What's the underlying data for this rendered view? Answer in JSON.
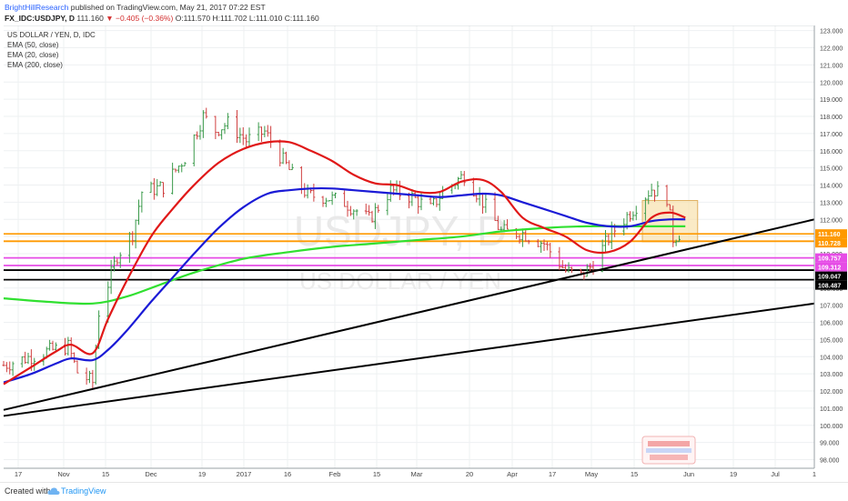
{
  "header": {
    "author": "BrightHillResearch",
    "published_text": "published on TradingView.com, May 21, 2017 07:22 EST",
    "symbol": "FX_IDC:USDJPY, D",
    "last": "111.160",
    "change": "▼ −0.405 (−0.36%)",
    "ohlc": "O:111.570 H:111.702 L:111.010 C:111.160"
  },
  "legend": {
    "title": "US DOLLAR / YEN, D, IDC",
    "items": [
      "EMA (50, close)",
      "EMA (20, close)",
      "EMA (200, close)"
    ]
  },
  "watermark": {
    "symbol": "USDJPY, D",
    "name": "US DOLLAR / YEN"
  },
  "footer": {
    "created_with": "Created with",
    "brand": "TradingView"
  },
  "colors": {
    "ema20": "#e01818",
    "ema50": "#1a1ad6",
    "ema200": "#30e030",
    "orange": "#ff9900",
    "magenta": "#e64ce6",
    "trend": "#000000",
    "up_bar": "#3a9a4a",
    "down_bar": "#d04040",
    "box_fill": "#f8dfa8"
  },
  "chart_data": {
    "type": "line",
    "x_ticks": [
      "17",
      "Nov",
      "15",
      "Dec",
      "19",
      "2017",
      "16",
      "Feb",
      "15",
      "Mar",
      "20",
      "Apr",
      "17",
      "May",
      "15",
      "Jun",
      "19",
      "Jul",
      "1"
    ],
    "y_ticks": [
      98,
      99,
      100,
      101,
      102,
      103,
      104,
      105,
      106,
      107,
      108,
      109,
      110,
      111,
      112,
      113,
      114,
      115,
      116,
      117,
      118,
      119,
      120,
      121,
      122,
      123
    ],
    "ylim": [
      97.5,
      123.3
    ],
    "price_labels": [
      {
        "label": "111.160",
        "value": 111.16,
        "color": "#ff9900",
        "text_color": "#ffffff"
      },
      {
        "label": "110.728",
        "value": 110.728,
        "color": "#ff9900",
        "text_color": "#ffffff"
      },
      {
        "label": "109.757",
        "value": 109.757,
        "color": "#e64ce6",
        "text_color": "#ffffff"
      },
      {
        "label": "109.312",
        "value": 109.312,
        "color": "#e64ce6",
        "text_color": "#ffffff"
      },
      {
        "label": "109.047",
        "value": 109.047,
        "color": "#000000",
        "text_color": "#ffffff"
      },
      {
        "label": "108.487",
        "value": 108.487,
        "color": "#000000",
        "text_color": "#ffffff"
      }
    ],
    "horizontal_levels": [
      {
        "value": 110.728,
        "color": "#ff9900"
      },
      {
        "value": 109.757,
        "color": "#e64ce6"
      },
      {
        "value": 109.312,
        "color": "#e64ce6"
      },
      {
        "value": 109.047,
        "color": "#000000"
      },
      {
        "value": 108.487,
        "color": "#000000"
      }
    ],
    "trendlines": [
      {
        "from": [
          "2016-10-11",
          100.9
        ],
        "to": [
          "2017-07-02",
          112.0
        ]
      },
      {
        "from": [
          "2016-10-11",
          100.55
        ],
        "to": [
          "2017-07-02",
          107.1
        ]
      }
    ],
    "highlight_box": {
      "from": "2017-05-07",
      "to": "2017-05-25",
      "low": 110.7,
      "high": 113.1
    },
    "ema20": [
      [
        "2016-10-11",
        102.4
      ],
      [
        "2016-10-20",
        103.4
      ],
      [
        "2016-10-28",
        104.3
      ],
      [
        "2016-11-02",
        104.7
      ],
      [
        "2016-11-09",
        104.2
      ],
      [
        "2016-11-14",
        106.2
      ],
      [
        "2016-11-20",
        108.4
      ],
      [
        "2016-11-28",
        111.0
      ],
      [
        "2016-12-05",
        112.6
      ],
      [
        "2016-12-12",
        114.0
      ],
      [
        "2016-12-20",
        115.3
      ],
      [
        "2016-12-28",
        116.1
      ],
      [
        "2017-01-05",
        116.5
      ],
      [
        "2017-01-12",
        116.5
      ],
      [
        "2017-01-19",
        116.0
      ],
      [
        "2017-01-26",
        115.4
      ],
      [
        "2017-02-02",
        114.6
      ],
      [
        "2017-02-09",
        114.1
      ],
      [
        "2017-02-16",
        114.0
      ],
      [
        "2017-02-23",
        113.6
      ],
      [
        "2017-03-02",
        113.6
      ],
      [
        "2017-03-09",
        114.2
      ],
      [
        "2017-03-16",
        114.3
      ],
      [
        "2017-03-22",
        113.6
      ],
      [
        "2017-03-29",
        112.1
      ],
      [
        "2017-04-05",
        111.5
      ],
      [
        "2017-04-12",
        111.0
      ],
      [
        "2017-04-19",
        110.2
      ],
      [
        "2017-04-26",
        110.1
      ],
      [
        "2017-05-03",
        110.7
      ],
      [
        "2017-05-10",
        112.1
      ],
      [
        "2017-05-16",
        112.4
      ],
      [
        "2017-05-21",
        112.1
      ]
    ],
    "ema50": [
      [
        "2016-10-11",
        102.5
      ],
      [
        "2016-10-20",
        103.0
      ],
      [
        "2016-10-28",
        103.6
      ],
      [
        "2016-11-02",
        103.9
      ],
      [
        "2016-11-09",
        103.8
      ],
      [
        "2016-11-14",
        104.4
      ],
      [
        "2016-11-20",
        105.5
      ],
      [
        "2016-11-28",
        107.2
      ],
      [
        "2016-12-05",
        108.6
      ],
      [
        "2016-12-12",
        110.0
      ],
      [
        "2016-12-20",
        111.5
      ],
      [
        "2016-12-28",
        112.7
      ],
      [
        "2017-01-05",
        113.5
      ],
      [
        "2017-01-12",
        113.7
      ],
      [
        "2017-01-19",
        113.8
      ],
      [
        "2017-01-26",
        113.8
      ],
      [
        "2017-02-02",
        113.7
      ],
      [
        "2017-02-09",
        113.6
      ],
      [
        "2017-02-16",
        113.5
      ],
      [
        "2017-02-23",
        113.4
      ],
      [
        "2017-03-02",
        113.3
      ],
      [
        "2017-03-09",
        113.4
      ],
      [
        "2017-03-16",
        113.5
      ],
      [
        "2017-03-22",
        113.4
      ],
      [
        "2017-03-29",
        113.0
      ],
      [
        "2017-04-05",
        112.6
      ],
      [
        "2017-04-12",
        112.2
      ],
      [
        "2017-04-19",
        111.8
      ],
      [
        "2017-04-26",
        111.6
      ],
      [
        "2017-05-03",
        111.6
      ],
      [
        "2017-05-10",
        111.9
      ],
      [
        "2017-05-16",
        112.0
      ],
      [
        "2017-05-21",
        112.0
      ]
    ],
    "ema200": [
      [
        "2016-10-11",
        107.4
      ],
      [
        "2016-10-25",
        107.2
      ],
      [
        "2016-11-09",
        107.1
      ],
      [
        "2016-11-20",
        107.5
      ],
      [
        "2016-12-01",
        108.2
      ],
      [
        "2016-12-12",
        108.9
      ],
      [
        "2016-12-28",
        109.7
      ],
      [
        "2017-01-12",
        110.1
      ],
      [
        "2017-01-26",
        110.4
      ],
      [
        "2017-02-09",
        110.6
      ],
      [
        "2017-02-23",
        110.8
      ],
      [
        "2017-03-09",
        111.0
      ],
      [
        "2017-03-22",
        111.3
      ],
      [
        "2017-04-05",
        111.5
      ],
      [
        "2017-04-19",
        111.6
      ],
      [
        "2017-05-03",
        111.6
      ],
      [
        "2017-05-21",
        111.6
      ]
    ],
    "price_path": [
      [
        "2016-10-11",
        103.5
      ],
      [
        "2016-10-18",
        103.9
      ],
      [
        "2016-10-25",
        104.3
      ],
      [
        "2016-11-01",
        104.6
      ],
      [
        "2016-11-04",
        103.1
      ],
      [
        "2016-11-09",
        102.5
      ],
      [
        "2016-11-11",
        106.6
      ],
      [
        "2016-11-17",
        109.9
      ],
      [
        "2016-11-22",
        111.2
      ],
      [
        "2016-11-25",
        113.6
      ],
      [
        "2016-12-02",
        113.9
      ],
      [
        "2016-12-09",
        115.6
      ],
      [
        "2016-12-15",
        118.0
      ],
      [
        "2016-12-19",
        117.2
      ],
      [
        "2016-12-23",
        117.6
      ],
      [
        "2016-12-29",
        116.6
      ],
      [
        "2017-01-04",
        117.1
      ],
      [
        "2017-01-09",
        115.7
      ],
      [
        "2017-01-13",
        114.6
      ],
      [
        "2017-01-18",
        113.4
      ],
      [
        "2017-01-24",
        113.3
      ],
      [
        "2017-01-30",
        113.0
      ],
      [
        "2017-02-07",
        112.0
      ],
      [
        "2017-02-14",
        113.7
      ],
      [
        "2017-02-21",
        113.3
      ],
      [
        "2017-02-27",
        112.6
      ],
      [
        "2017-03-03",
        113.6
      ],
      [
        "2017-03-10",
        114.6
      ],
      [
        "2017-03-15",
        113.3
      ],
      [
        "2017-03-22",
        111.3
      ],
      [
        "2017-03-29",
        111.2
      ],
      [
        "2017-04-05",
        110.6
      ],
      [
        "2017-04-12",
        109.0
      ],
      [
        "2017-04-17",
        108.7
      ],
      [
        "2017-04-21",
        109.4
      ],
      [
        "2017-04-27",
        111.2
      ],
      [
        "2017-05-04",
        112.6
      ],
      [
        "2017-05-10",
        113.8
      ],
      [
        "2017-05-15",
        113.3
      ],
      [
        "2017-05-17",
        110.9
      ],
      [
        "2017-05-19",
        111.2
      ]
    ]
  }
}
